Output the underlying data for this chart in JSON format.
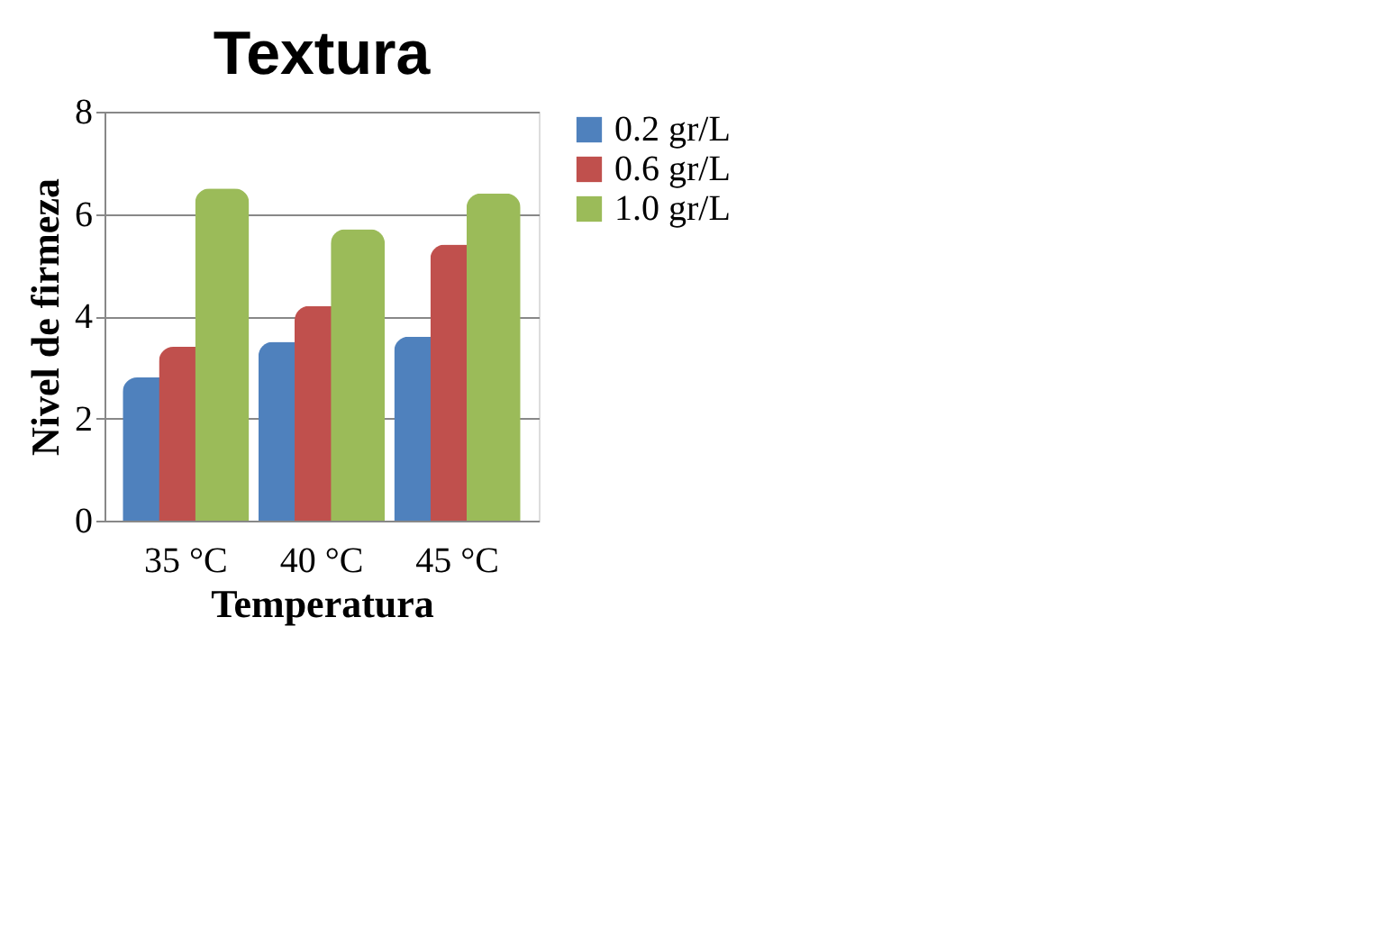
{
  "chart_data": {
    "type": "bar",
    "title": "Textura",
    "xlabel": "Temperatura",
    "ylabel": "Nivel de firmeza",
    "categories": [
      "35 °C",
      "40 °C",
      "45 °C"
    ],
    "series": [
      {
        "name": "0.2 gr/L",
        "color": "#4f81bd",
        "values": [
          2.8,
          3.5,
          3.6
        ]
      },
      {
        "name": "0.6 gr/L",
        "color": "#c0504d",
        "values": [
          3.4,
          4.2,
          5.4
        ]
      },
      {
        "name": "1.0 gr/L",
        "color": "#9bbb59",
        "values": [
          6.5,
          5.7,
          6.4
        ]
      }
    ],
    "ylim": [
      0,
      8
    ],
    "yticks": [
      0,
      2,
      4,
      6,
      8
    ],
    "grid": "y",
    "legend": "right"
  }
}
